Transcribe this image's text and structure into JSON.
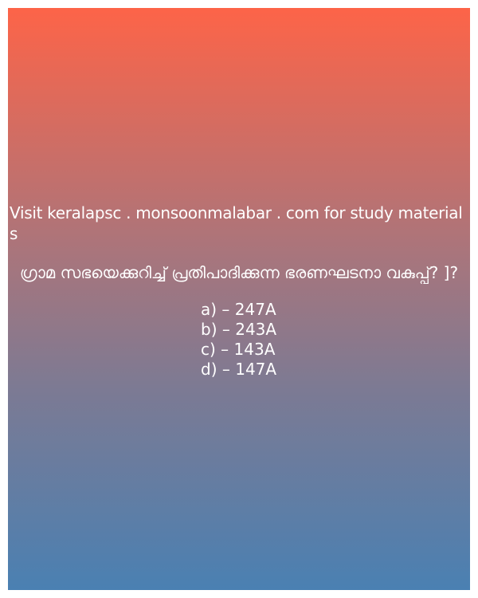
{
  "visit_text": "Visit keralapsc . monsoonmalabar . com for study materials",
  "question": "ഗ്രാമ സഭയെക്കുറിച്ച് പ്രതിപാദിക്കുന്ന ഭരണഘടനാ വകുപ്പ്? ]?",
  "options": [
    "a) – 247A",
    "b) – 243A",
    "c) – 143A",
    "d) – 147A"
  ],
  "colors": {
    "gradient_top": "#fd6448",
    "gradient_bottom": "#4a80b2",
    "text": "#ffffff"
  }
}
